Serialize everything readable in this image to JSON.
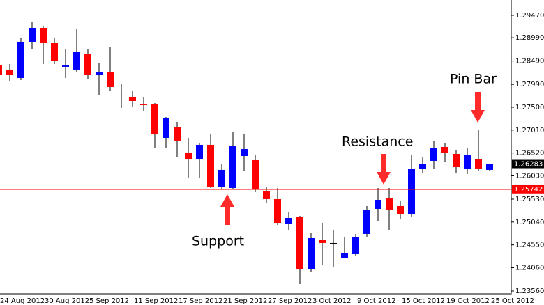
{
  "chart_data": {
    "type": "candlestick",
    "up_color": "#0000ff",
    "down_color": "#ff0000",
    "categories": [
      "24 Aug 2012",
      null,
      null,
      null,
      "30 Aug 2012",
      null,
      null,
      null,
      "5 Sep 2012",
      null,
      null,
      null,
      "11 Sep 2012",
      null,
      null,
      null,
      "17 Sep 2012",
      null,
      null,
      null,
      "21 Sep 2012",
      null,
      null,
      null,
      "27 Sep 2012",
      null,
      null,
      null,
      "3 Oct 2012",
      null,
      null,
      null,
      "9 Oct 2012",
      null,
      null,
      null,
      "15 Oct 2012",
      null,
      null,
      null,
      "19 Oct 2012",
      null,
      null,
      null,
      "25 Oct 2012"
    ],
    "open": [
      1.2841,
      1.28306,
      1.28127,
      1.28903,
      1.29201,
      1.28873,
      1.28366,
      1.28306,
      1.28649,
      1.28186,
      1.28246,
      1.27754,
      1.27724,
      1.27574,
      1.2756,
      1.26843,
      1.27082,
      1.2653,
      1.2638,
      1.26694,
      1.25798,
      1.25769,
      1.26455,
      1.26366,
      1.25694,
      1.2553,
      1.25007,
      1.25142,
      1.24022,
      1.24649,
      1.2459,
      1.24276,
      1.24351,
      1.24784,
      1.25321,
      1.25545,
      1.25381,
      1.25201,
      1.26172,
      1.26351,
      1.26649,
      1.265,
      1.26172,
      1.26395,
      1.26157
    ],
    "high": [
      1.2853,
      1.28425,
      1.28977,
      1.29321,
      1.29231,
      1.28977,
      1.28754,
      1.29172,
      1.28754,
      1.28455,
      1.28783,
      1.28007,
      1.27858,
      1.27709,
      1.27589,
      1.27291,
      1.27186,
      1.26843,
      1.26739,
      1.26933,
      1.26276,
      1.26963,
      1.26933,
      1.26485,
      1.25798,
      1.25769,
      1.25246,
      1.25172,
      1.24798,
      1.25022,
      1.24873,
      1.24724,
      1.24784,
      1.25381,
      1.25769,
      1.25769,
      1.255,
      1.26485,
      1.2644,
      1.26769,
      1.26739,
      1.26589,
      1.26634,
      1.27022,
      1.26291
    ],
    "low": [
      1.28157,
      1.28052,
      1.28082,
      1.28754,
      1.28425,
      1.28425,
      1.28127,
      1.28246,
      1.28112,
      1.27754,
      1.27858,
      1.27485,
      1.27515,
      1.2741,
      1.26619,
      1.26634,
      1.26425,
      1.25993,
      1.25993,
      1.25769,
      1.25739,
      1.25739,
      1.26142,
      1.25679,
      1.2544,
      1.24977,
      1.24873,
      1.23709,
      1.23977,
      1.24127,
      1.24082,
      1.24276,
      1.24321,
      1.24724,
      1.25052,
      1.24873,
      1.25097,
      1.25142,
      1.26097,
      1.26172,
      1.26321,
      1.26097,
      1.26067,
      1.26142,
      1.26127
    ],
    "close": [
      1.28201,
      1.28186,
      1.28903,
      1.29201,
      1.28873,
      1.28485,
      1.28395,
      1.28679,
      1.28201,
      1.28246,
      1.27933,
      1.27768,
      1.27634,
      1.27545,
      1.26918,
      1.27261,
      1.26784,
      1.2638,
      1.26694,
      1.25798,
      1.26157,
      1.26664,
      1.26604,
      1.25739,
      1.2553,
      1.25022,
      1.25127,
      1.24022,
      1.24694,
      1.2459,
      1.2459,
      1.24366,
      1.24724,
      1.25291,
      1.25515,
      1.25291,
      1.25216,
      1.26172,
      1.26291,
      1.26619,
      1.26515,
      1.26216,
      1.2647,
      1.26187,
      1.26283
    ],
    "ylim": [
      1.235,
      1.29798
    ],
    "yticks": [
      {
        "value": 1.2947,
        "label": "1.29470"
      },
      {
        "value": 1.2899,
        "label": "1.28990"
      },
      {
        "value": 1.2849,
        "label": "1.28490"
      },
      {
        "value": 1.2799,
        "label": "1.27990"
      },
      {
        "value": 1.275,
        "label": "1.27500"
      },
      {
        "value": 1.2701,
        "label": "1.27010"
      },
      {
        "value": 1.2652,
        "label": "1.26520"
      },
      {
        "value": 1.2603,
        "label": "1.26030"
      },
      {
        "value": 1.2553,
        "label": "1.25530"
      },
      {
        "value": 1.2504,
        "label": "1.25040"
      },
      {
        "value": 1.2455,
        "label": "1.24550"
      },
      {
        "value": 1.2406,
        "label": "1.24060"
      },
      {
        "value": 1.2356,
        "label": "1.23560"
      }
    ],
    "level": 1.25742,
    "level_color": "#ff0000",
    "annotations": [
      "Pin Bar",
      "Resistance",
      "Support"
    ]
  }
}
